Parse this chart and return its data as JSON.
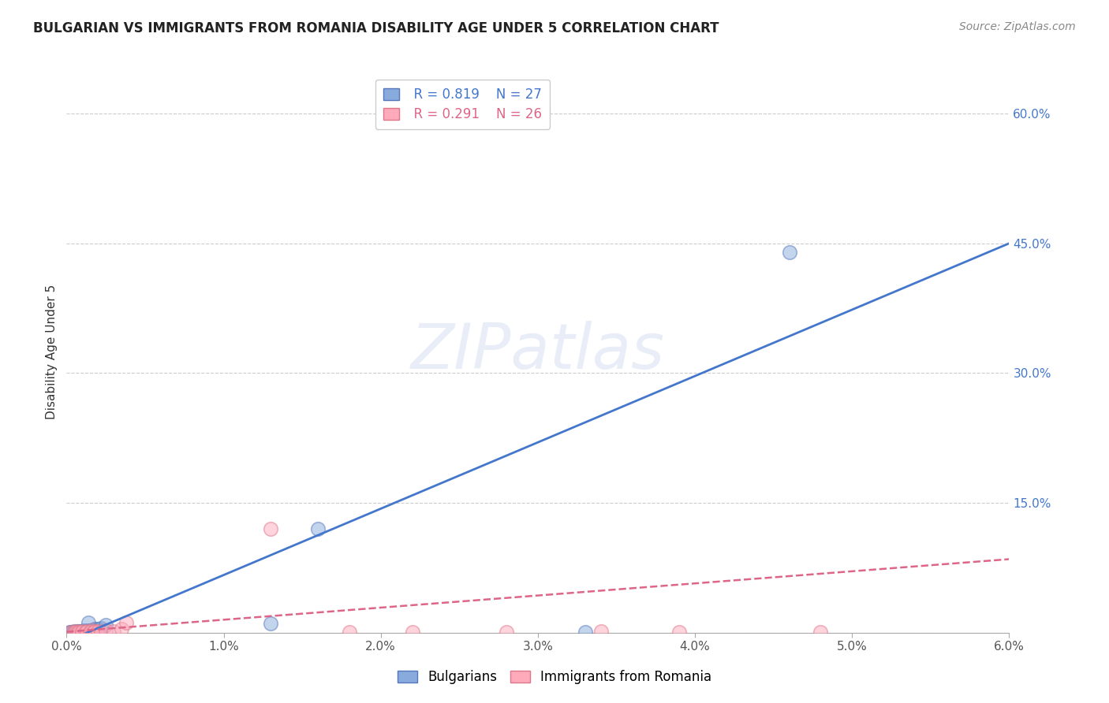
{
  "title": "BULGARIAN VS IMMIGRANTS FROM ROMANIA DISABILITY AGE UNDER 5 CORRELATION CHART",
  "source": "Source: ZipAtlas.com",
  "ylabel": "Disability Age Under 5",
  "xlim": [
    0.0,
    0.06
  ],
  "ylim": [
    0.0,
    0.65
  ],
  "xticks": [
    0.0,
    0.01,
    0.02,
    0.03,
    0.04,
    0.05,
    0.06
  ],
  "xticklabels": [
    "0.0%",
    "1.0%",
    "2.0%",
    "3.0%",
    "4.0%",
    "5.0%",
    "6.0%"
  ],
  "yticks_right": [
    0.0,
    0.15,
    0.3,
    0.45,
    0.6
  ],
  "yticklabels_right": [
    "",
    "15.0%",
    "30.0%",
    "45.0%",
    "60.0%"
  ],
  "grid_color": "#cccccc",
  "background_color": "#ffffff",
  "blue_color": "#88aadd",
  "blue_edge_color": "#5577bb",
  "pink_color": "#ffaabb",
  "pink_edge_color": "#dd7788",
  "blue_line_color": "#4477cc",
  "pink_line_color": "#dd6688",
  "legend_blue_R": "R = 0.819",
  "legend_blue_N": "N = 27",
  "legend_pink_R": "R = 0.291",
  "legend_pink_N": "N = 26",
  "label_blue": "Bulgarians",
  "label_pink": "Immigrants from Romania",
  "watermark": "ZIPatlas",
  "blue_scatter_x": [
    0.0002,
    0.0003,
    0.0004,
    0.0005,
    0.0005,
    0.0006,
    0.0007,
    0.0007,
    0.0008,
    0.0008,
    0.0009,
    0.001,
    0.001,
    0.0011,
    0.0012,
    0.0013,
    0.0014,
    0.0015,
    0.0016,
    0.0018,
    0.002,
    0.0022,
    0.0025,
    0.013,
    0.016,
    0.046,
    0.033
  ],
  "blue_scatter_y": [
    0.001,
    0.001,
    0.001,
    0.002,
    0.001,
    0.001,
    0.001,
    0.002,
    0.002,
    0.001,
    0.001,
    0.002,
    0.001,
    0.003,
    0.002,
    0.003,
    0.012,
    0.003,
    0.002,
    0.004,
    0.004,
    0.005,
    0.009,
    0.011,
    0.12,
    0.44,
    0.001
  ],
  "pink_scatter_x": [
    0.0003,
    0.0005,
    0.0006,
    0.0007,
    0.0008,
    0.001,
    0.001,
    0.0012,
    0.0013,
    0.0015,
    0.0016,
    0.0017,
    0.0018,
    0.002,
    0.0022,
    0.0025,
    0.003,
    0.0035,
    0.0038,
    0.018,
    0.022,
    0.028,
    0.034,
    0.039,
    0.048,
    0.013
  ],
  "pink_scatter_y": [
    0.001,
    0.001,
    0.002,
    0.001,
    0.001,
    0.001,
    0.002,
    0.001,
    0.002,
    0.001,
    0.003,
    0.001,
    0.002,
    0.002,
    0.001,
    0.003,
    0.002,
    0.004,
    0.012,
    0.001,
    0.001,
    0.001,
    0.002,
    0.001,
    0.001,
    0.12
  ],
  "title_fontsize": 12,
  "axis_label_fontsize": 11,
  "tick_fontsize": 11,
  "legend_fontsize": 12,
  "source_fontsize": 10
}
